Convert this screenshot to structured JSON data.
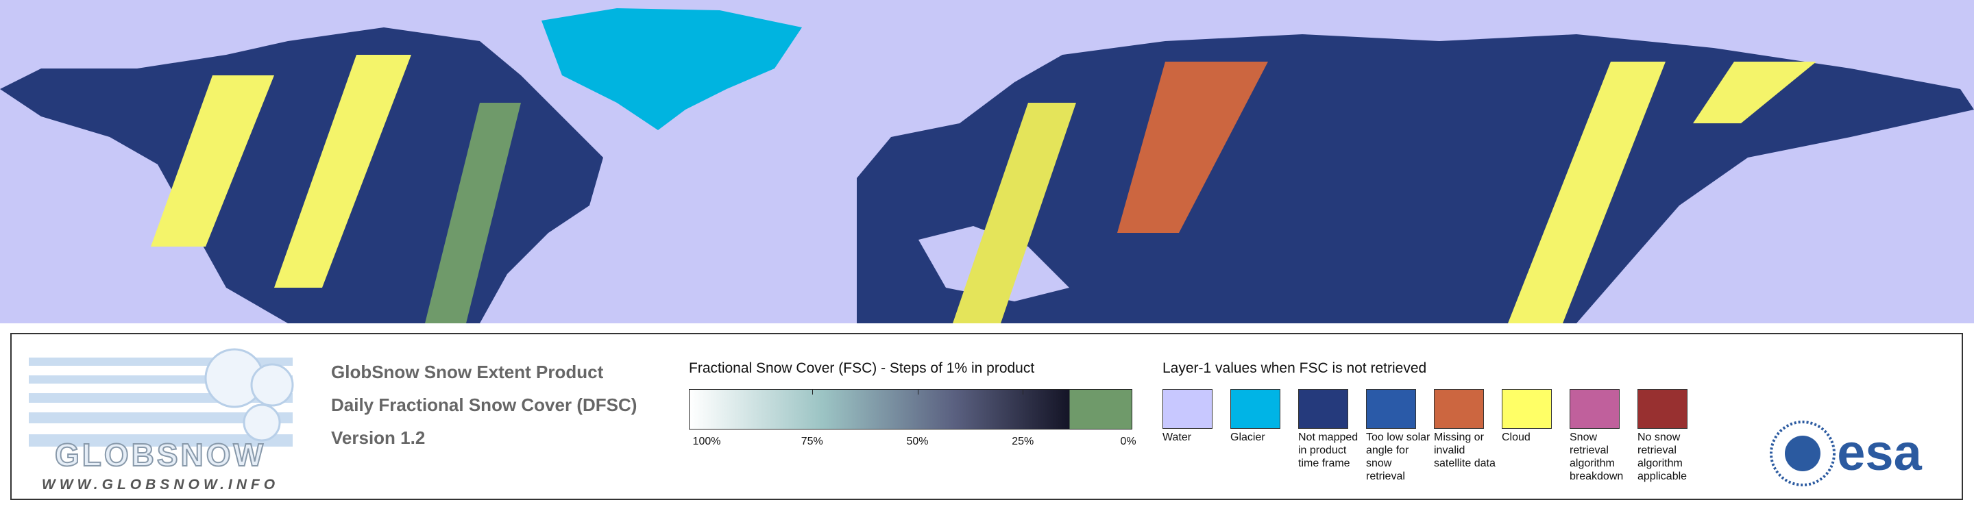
{
  "logo": {
    "name": "GLOBSNOW",
    "url": "WWW.GLOBSNOW.INFO"
  },
  "product": {
    "title": "GlobSnow Snow Extent Product",
    "subtitle": "Daily Fractional Snow Cover (DFSC)",
    "version": "Version 1.2"
  },
  "fsc_legend": {
    "title": "Fractional Snow Cover (FSC) - Steps of 1% in product",
    "labels": [
      "100%",
      "75%",
      "50%",
      "25%",
      "0%"
    ]
  },
  "layer1_legend": {
    "title": "Layer-1 values when FSC is not retrieved",
    "items": [
      {
        "label": "Water",
        "color": "#c8c8ff"
      },
      {
        "label": "Glacier",
        "color": "#00b4e6"
      },
      {
        "label": "Not mapped in product time frame",
        "color": "#253a7c"
      },
      {
        "label": "Too low solar angle for snow retrieval",
        "color": "#2a5aa8"
      },
      {
        "label": "Missing or invalid satellite data",
        "color": "#cc6640"
      },
      {
        "label": "Cloud",
        "color": "#ffff66"
      },
      {
        "label": "Snow retrieval algorithm breakdown",
        "color": "#c0609c"
      },
      {
        "label": "No snow retrieval algorithm applicable",
        "color": "#983030"
      }
    ]
  },
  "agency": "esa"
}
